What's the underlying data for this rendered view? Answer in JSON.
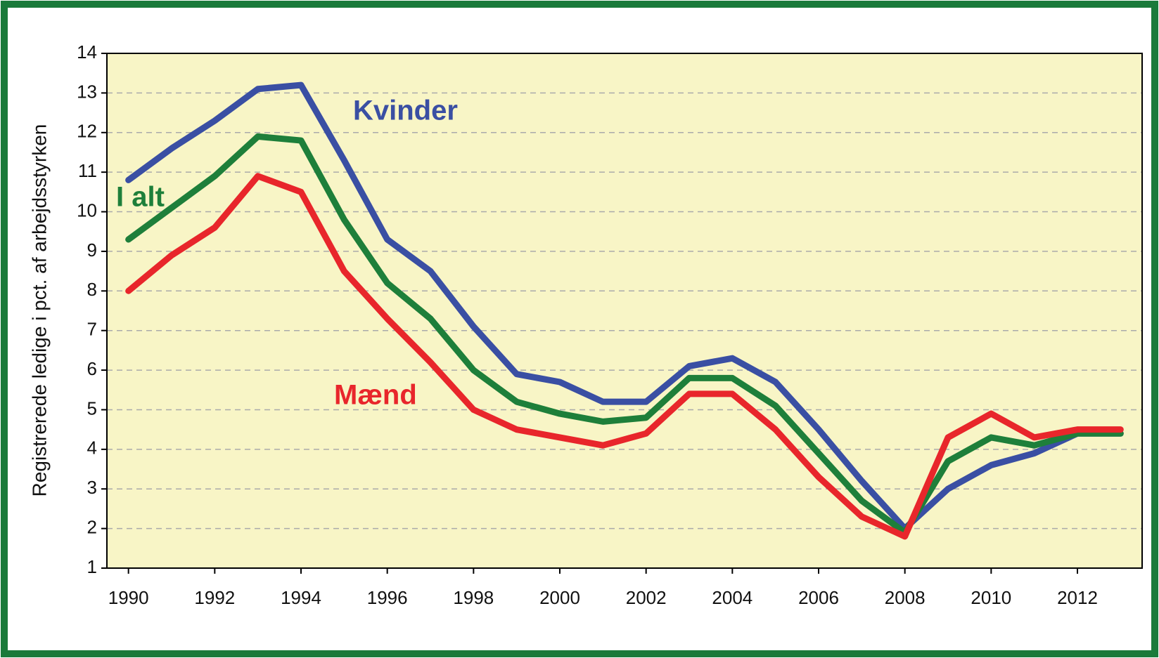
{
  "chart_data": {
    "type": "line",
    "y_label": "Registrerede ledige i pct. af arbejdsstyrken",
    "x": [
      1990,
      1991,
      1992,
      1993,
      1994,
      1995,
      1996,
      1997,
      1998,
      1999,
      2000,
      2001,
      2002,
      2003,
      2004,
      2005,
      2006,
      2007,
      2008,
      2009,
      2010,
      2011,
      2012,
      2013
    ],
    "series": [
      {
        "name": "Kvinder",
        "color": "#3a4fa3",
        "values": [
          10.8,
          11.6,
          12.3,
          13.1,
          13.2,
          11.3,
          9.3,
          8.5,
          7.1,
          5.9,
          5.7,
          5.2,
          5.2,
          6.1,
          6.3,
          5.7,
          4.5,
          3.2,
          2.0,
          3.0,
          3.6,
          3.9,
          4.4,
          4.4
        ]
      },
      {
        "name": "I alt",
        "color": "#1e7f3a",
        "values": [
          9.3,
          10.1,
          10.9,
          11.9,
          11.8,
          9.8,
          8.2,
          7.3,
          6.0,
          5.2,
          4.9,
          4.7,
          4.8,
          5.8,
          5.8,
          5.1,
          3.9,
          2.7,
          1.9,
          3.7,
          4.3,
          4.1,
          4.4,
          4.4
        ]
      },
      {
        "name": "Mænd",
        "color": "#e8262b",
        "values": [
          8.0,
          8.9,
          9.6,
          10.9,
          10.5,
          8.5,
          7.3,
          6.2,
          5.0,
          4.5,
          4.3,
          4.1,
          4.4,
          5.4,
          5.4,
          4.5,
          3.3,
          2.3,
          1.8,
          4.3,
          4.9,
          4.3,
          4.5,
          4.5
        ]
      }
    ],
    "xlim": [
      1989.5,
      2013.5
    ],
    "xticks": [
      1990,
      1992,
      1994,
      1996,
      1998,
      2000,
      2002,
      2004,
      2006,
      2008,
      2010,
      2012
    ],
    "ylim": [
      1,
      14
    ],
    "yticks": [
      1,
      2,
      3,
      4,
      5,
      6,
      7,
      8,
      9,
      10,
      11,
      12,
      13,
      14
    ],
    "grid": true,
    "plot_background": "#f8f5c6",
    "frame_color": "#1a7a3a"
  }
}
